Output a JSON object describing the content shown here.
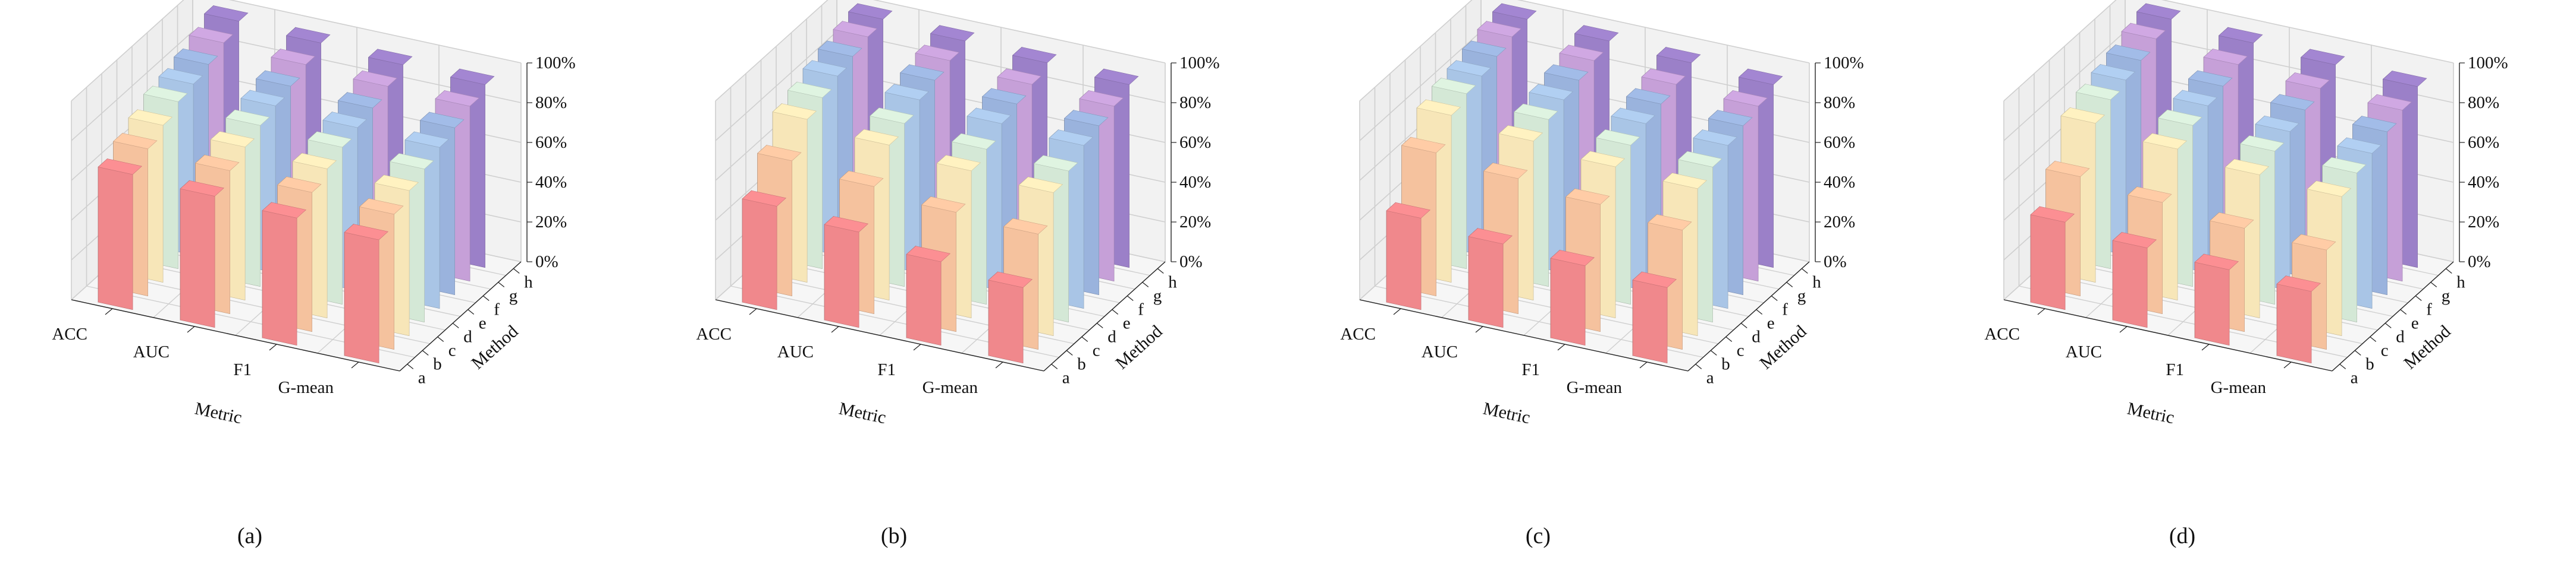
{
  "figure": {
    "metric_label": "Metric",
    "method_label": "Method"
  },
  "chart_data": [
    {
      "type": "bar3d",
      "caption": "(a)",
      "xlabel": "Metric",
      "ylabel": "Method",
      "categories": [
        "ACC",
        "AUC",
        "F1",
        "G-mean"
      ],
      "series_names": [
        "a",
        "b",
        "c",
        "d",
        "e",
        "f",
        "g",
        "h"
      ],
      "zticks": [
        "0%",
        "20%",
        "40%",
        "60%",
        "80%",
        "100%"
      ],
      "zlim": [
        0,
        100
      ],
      "values": [
        [
          68,
          66,
          64,
          62
        ],
        [
          74,
          72,
          70,
          68
        ],
        [
          79,
          77,
          75,
          73
        ],
        [
          84,
          81,
          79,
          77
        ],
        [
          86,
          84,
          82,
          81
        ],
        [
          89,
          87,
          85,
          84
        ],
        [
          93,
          91,
          89,
          88
        ],
        [
          97,
          95,
          93,
          92
        ]
      ]
    },
    {
      "type": "bar3d",
      "caption": "(b)",
      "xlabel": "Metric",
      "ylabel": "Method",
      "categories": [
        "ACC",
        "AUC",
        "F1",
        "G-mean"
      ],
      "series_names": [
        "a",
        "b",
        "c",
        "d",
        "e",
        "f",
        "g",
        "h"
      ],
      "zticks": [
        "0%",
        "20%",
        "40%",
        "60%",
        "80%",
        "100%"
      ],
      "zlim": [
        0,
        100
      ],
      "values": [
        [
          52,
          48,
          42,
          38
        ],
        [
          68,
          64,
          60,
          58
        ],
        [
          82,
          78,
          74,
          72
        ],
        [
          86,
          82,
          78,
          76
        ],
        [
          90,
          87,
          84,
          82
        ],
        [
          93,
          90,
          87,
          85
        ],
        [
          96,
          93,
          90,
          88
        ],
        [
          98,
          96,
          94,
          92
        ]
      ]
    },
    {
      "type": "bar3d",
      "caption": "(c)",
      "xlabel": "Metric",
      "ylabel": "Method",
      "categories": [
        "ACC",
        "AUC",
        "F1",
        "G-mean"
      ],
      "series_names": [
        "a",
        "b",
        "c",
        "d",
        "e",
        "f",
        "g",
        "h"
      ],
      "zticks": [
        "0%",
        "20%",
        "40%",
        "60%",
        "80%",
        "100%"
      ],
      "zlim": [
        0,
        100
      ],
      "values": [
        [
          46,
          42,
          40,
          38
        ],
        [
          72,
          68,
          64,
          60
        ],
        [
          84,
          80,
          76,
          74
        ],
        [
          88,
          84,
          80,
          78
        ],
        [
          90,
          87,
          84,
          82
        ],
        [
          93,
          90,
          87,
          85
        ],
        [
          96,
          93,
          90,
          88
        ],
        [
          98,
          96,
          94,
          92
        ]
      ]
    },
    {
      "type": "bar3d",
      "caption": "(d)",
      "xlabel": "Metric",
      "ylabel": "Method",
      "categories": [
        "ACC",
        "AUC",
        "F1",
        "G-mean"
      ],
      "series_names": [
        "a",
        "b",
        "c",
        "d",
        "e",
        "f",
        "g",
        "h"
      ],
      "zticks": [
        "0%",
        "20%",
        "40%",
        "60%",
        "80%",
        "100%"
      ],
      "zlim": [
        0,
        100
      ],
      "values": [
        [
          44,
          40,
          38,
          36
        ],
        [
          60,
          56,
          52,
          50
        ],
        [
          80,
          76,
          72,
          70
        ],
        [
          85,
          81,
          77,
          75
        ],
        [
          88,
          84,
          80,
          78
        ],
        [
          91,
          87,
          84,
          82
        ],
        [
          95,
          91,
          88,
          86
        ],
        [
          98,
          95,
          93,
          91
        ]
      ]
    }
  ],
  "colors": {
    "series": [
      "#f0888c",
      "#f5c29e",
      "#f7e6b8",
      "#d4e8d6",
      "#a9c5e6",
      "#9ab3dd",
      "#c6a0d8",
      "#9b80c8"
    ],
    "grid": "#cfcfcf",
    "pane": "#f2f2f2"
  }
}
